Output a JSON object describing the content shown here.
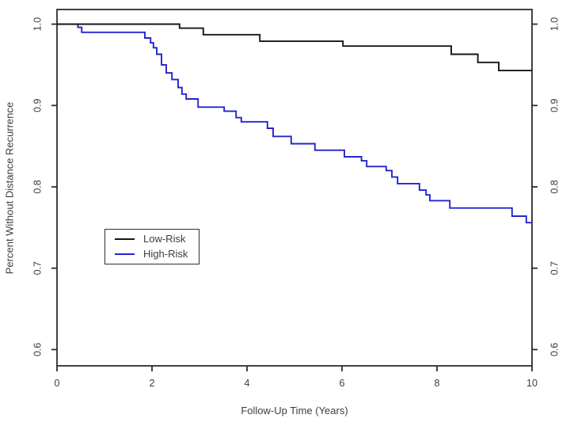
{
  "figure": {
    "background": "#ffffff",
    "text_color": "#3d3d3d",
    "axis_color": "#2e2e2e"
  },
  "chart_data": {
    "type": "line",
    "subtype": "kaplan-meier-step",
    "title": "",
    "xlabel": "Follow-Up Time (Years)",
    "ylabel": "Percent Without Distance Recurrence",
    "xlim": [
      0,
      10
    ],
    "ylim": [
      0.58,
      1.018
    ],
    "x_ticks": [
      0,
      2,
      4,
      6,
      8,
      10
    ],
    "y_ticks": [
      0.6,
      0.7,
      0.8,
      0.9,
      1.0
    ],
    "y_tick_labels": [
      "0.6",
      "0.7",
      "0.8",
      "0.9",
      "1.0"
    ],
    "grid": false,
    "axes_style": "closed box, ticks outside on bottom, left and right",
    "series": [
      {
        "name": "Low-Risk",
        "color": "#161616",
        "start": [
          0,
          1.0
        ],
        "end_x": 10,
        "steps": [
          [
            2.58,
            0.995
          ],
          [
            3.08,
            0.987
          ],
          [
            4.27,
            0.979
          ],
          [
            6.02,
            0.973
          ],
          [
            8.3,
            0.963
          ],
          [
            8.86,
            0.953
          ],
          [
            9.3,
            0.943
          ]
        ]
      },
      {
        "name": "High-Risk",
        "color": "#2323d0",
        "start": [
          0,
          1.0
        ],
        "end_x": 10,
        "steps": [
          [
            0.44,
            0.996
          ],
          [
            0.52,
            0.99
          ],
          [
            1.85,
            0.983
          ],
          [
            1.97,
            0.977
          ],
          [
            2.03,
            0.971
          ],
          [
            2.1,
            0.963
          ],
          [
            2.2,
            0.95
          ],
          [
            2.3,
            0.94
          ],
          [
            2.42,
            0.932
          ],
          [
            2.55,
            0.922
          ],
          [
            2.63,
            0.914
          ],
          [
            2.72,
            0.908
          ],
          [
            2.97,
            0.898
          ],
          [
            3.52,
            0.893
          ],
          [
            3.77,
            0.885
          ],
          [
            3.88,
            0.88
          ],
          [
            4.43,
            0.872
          ],
          [
            4.55,
            0.862
          ],
          [
            4.93,
            0.853
          ],
          [
            5.43,
            0.845
          ],
          [
            6.05,
            0.837
          ],
          [
            6.41,
            0.832
          ],
          [
            6.52,
            0.825
          ],
          [
            6.93,
            0.82
          ],
          [
            7.05,
            0.812
          ],
          [
            7.17,
            0.804
          ],
          [
            7.63,
            0.796
          ],
          [
            7.77,
            0.79
          ],
          [
            7.85,
            0.783
          ],
          [
            8.27,
            0.774
          ],
          [
            9.58,
            0.764
          ],
          [
            9.88,
            0.756
          ]
        ]
      }
    ],
    "legend": {
      "position": "center-left inside plot",
      "items": [
        {
          "label": "Low-Risk",
          "color": "#161616"
        },
        {
          "label": "High-Risk",
          "color": "#2323d0"
        }
      ]
    }
  }
}
